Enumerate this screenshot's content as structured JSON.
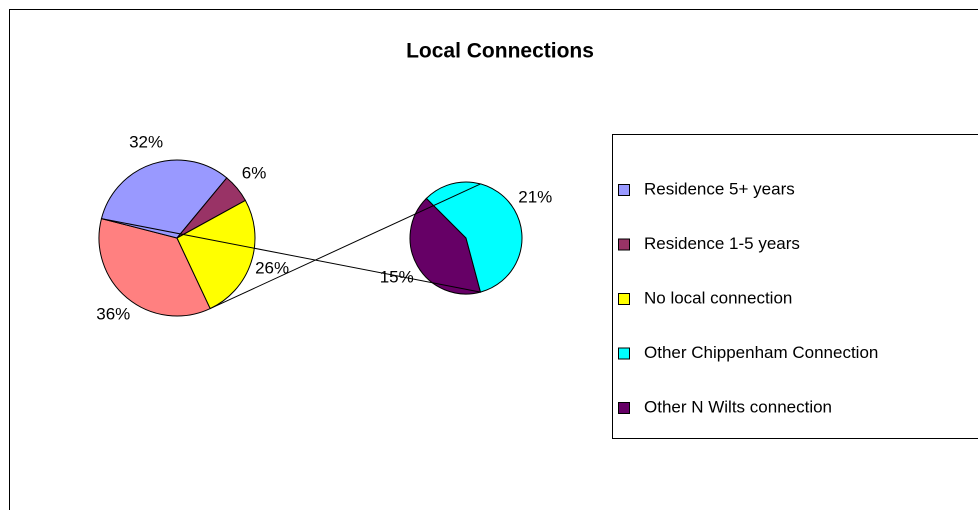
{
  "chart_data": {
    "type": "pie_of_pie",
    "title": "Local Connections",
    "pie": {
      "categories": [
        "Residence 5+ years",
        "Residence 1-5 years",
        "No local connection",
        null
      ],
      "values": [
        32,
        6,
        26,
        36
      ],
      "value_labels": [
        "32%",
        "6%",
        "26%",
        "36%"
      ],
      "colors": [
        "#9999ff",
        "#993366",
        "#ffff00",
        "#ff8080"
      ]
    },
    "secondary": {
      "categories": [
        "Other Chippenham Connection",
        "Other N Wilts connection"
      ],
      "values": [
        21,
        15
      ],
      "value_labels": [
        "21%",
        "15%"
      ],
      "colors": [
        "#00ffff",
        "#660066"
      ]
    },
    "legend": "right"
  }
}
